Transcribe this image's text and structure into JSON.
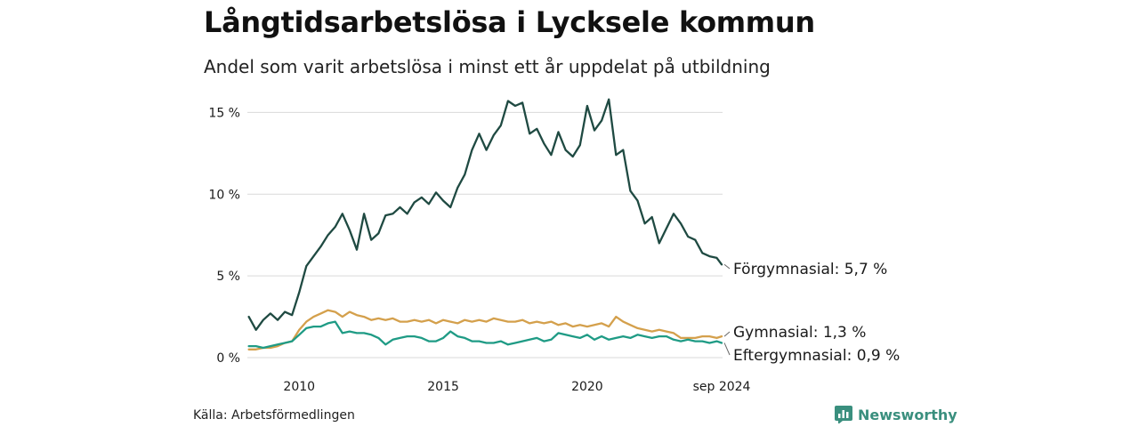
{
  "header": {
    "title": "Långtidsarbetslösa i Lycksele kommun",
    "subtitle": "Andel som varit arbetslösa i minst ett år uppdelat på utbildning"
  },
  "footer": {
    "source": "Källa: Arbetsförmedlingen",
    "brand": "Newsworthy"
  },
  "colors": {
    "forgymnasial": "#1f4a42",
    "gymnasial": "#d4a04c",
    "eftergymnasial": "#1f9b85",
    "grid": "#d9d9d9",
    "brand": "#3a8f7e"
  },
  "chart_data": {
    "type": "line",
    "ylim": [
      0,
      16
    ],
    "yticks": [
      0,
      5,
      10,
      15
    ],
    "ytick_labels": [
      "0 %",
      "5 %",
      "10 %",
      "15 %"
    ],
    "xlim": [
      2008.2,
      2024.7
    ],
    "xticks": [
      2010,
      2015,
      2020,
      2024.67
    ],
    "xtick_labels": [
      "2010",
      "2015",
      "2020",
      "sep 2024"
    ],
    "grid": true,
    "series": [
      {
        "name": "Förgymnasial",
        "end_label": "Förgymnasial: 5,7 %",
        "color": "#1f4a42",
        "points": [
          [
            2008.25,
            2.5
          ],
          [
            2008.5,
            1.7
          ],
          [
            2008.75,
            2.3
          ],
          [
            2009.0,
            2.7
          ],
          [
            2009.25,
            2.3
          ],
          [
            2009.5,
            2.8
          ],
          [
            2009.75,
            2.6
          ],
          [
            2010.0,
            4.0
          ],
          [
            2010.25,
            5.6
          ],
          [
            2010.5,
            6.2
          ],
          [
            2010.75,
            6.8
          ],
          [
            2011.0,
            7.5
          ],
          [
            2011.25,
            8.0
          ],
          [
            2011.5,
            8.8
          ],
          [
            2011.75,
            7.8
          ],
          [
            2012.0,
            6.6
          ],
          [
            2012.25,
            8.8
          ],
          [
            2012.5,
            7.2
          ],
          [
            2012.75,
            7.6
          ],
          [
            2013.0,
            8.7
          ],
          [
            2013.25,
            8.8
          ],
          [
            2013.5,
            9.2
          ],
          [
            2013.75,
            8.8
          ],
          [
            2014.0,
            9.5
          ],
          [
            2014.25,
            9.8
          ],
          [
            2014.5,
            9.4
          ],
          [
            2014.75,
            10.1
          ],
          [
            2015.0,
            9.6
          ],
          [
            2015.25,
            9.2
          ],
          [
            2015.5,
            10.4
          ],
          [
            2015.75,
            11.2
          ],
          [
            2016.0,
            12.7
          ],
          [
            2016.25,
            13.7
          ],
          [
            2016.5,
            12.7
          ],
          [
            2016.75,
            13.6
          ],
          [
            2017.0,
            14.2
          ],
          [
            2017.25,
            15.7
          ],
          [
            2017.5,
            15.4
          ],
          [
            2017.75,
            15.6
          ],
          [
            2018.0,
            13.7
          ],
          [
            2018.25,
            14.0
          ],
          [
            2018.5,
            13.1
          ],
          [
            2018.75,
            12.4
          ],
          [
            2019.0,
            13.8
          ],
          [
            2019.25,
            12.7
          ],
          [
            2019.5,
            12.3
          ],
          [
            2019.75,
            13.0
          ],
          [
            2020.0,
            15.4
          ],
          [
            2020.25,
            13.9
          ],
          [
            2020.5,
            14.5
          ],
          [
            2020.75,
            15.8
          ],
          [
            2021.0,
            12.4
          ],
          [
            2021.25,
            12.7
          ],
          [
            2021.5,
            10.2
          ],
          [
            2021.75,
            9.6
          ],
          [
            2022.0,
            8.2
          ],
          [
            2022.25,
            8.6
          ],
          [
            2022.5,
            7.0
          ],
          [
            2022.75,
            7.9
          ],
          [
            2023.0,
            8.8
          ],
          [
            2023.25,
            8.2
          ],
          [
            2023.5,
            7.4
          ],
          [
            2023.75,
            7.2
          ],
          [
            2024.0,
            6.4
          ],
          [
            2024.25,
            6.2
          ],
          [
            2024.5,
            6.1
          ],
          [
            2024.67,
            5.7
          ]
        ]
      },
      {
        "name": "Gymnasial",
        "end_label": "Gymnasial: 1,3 %",
        "color": "#d4a04c",
        "points": [
          [
            2008.25,
            0.5
          ],
          [
            2008.5,
            0.5
          ],
          [
            2008.75,
            0.6
          ],
          [
            2009.0,
            0.6
          ],
          [
            2009.25,
            0.7
          ],
          [
            2009.5,
            0.9
          ],
          [
            2009.75,
            1.0
          ],
          [
            2010.0,
            1.7
          ],
          [
            2010.25,
            2.2
          ],
          [
            2010.5,
            2.5
          ],
          [
            2010.75,
            2.7
          ],
          [
            2011.0,
            2.9
          ],
          [
            2011.25,
            2.8
          ],
          [
            2011.5,
            2.5
          ],
          [
            2011.75,
            2.8
          ],
          [
            2012.0,
            2.6
          ],
          [
            2012.25,
            2.5
          ],
          [
            2012.5,
            2.3
          ],
          [
            2012.75,
            2.4
          ],
          [
            2013.0,
            2.3
          ],
          [
            2013.25,
            2.4
          ],
          [
            2013.5,
            2.2
          ],
          [
            2013.75,
            2.2
          ],
          [
            2014.0,
            2.3
          ],
          [
            2014.25,
            2.2
          ],
          [
            2014.5,
            2.3
          ],
          [
            2014.75,
            2.1
          ],
          [
            2015.0,
            2.3
          ],
          [
            2015.25,
            2.2
          ],
          [
            2015.5,
            2.1
          ],
          [
            2015.75,
            2.3
          ],
          [
            2016.0,
            2.2
          ],
          [
            2016.25,
            2.3
          ],
          [
            2016.5,
            2.2
          ],
          [
            2016.75,
            2.4
          ],
          [
            2017.0,
            2.3
          ],
          [
            2017.25,
            2.2
          ],
          [
            2017.5,
            2.2
          ],
          [
            2017.75,
            2.3
          ],
          [
            2018.0,
            2.1
          ],
          [
            2018.25,
            2.2
          ],
          [
            2018.5,
            2.1
          ],
          [
            2018.75,
            2.2
          ],
          [
            2019.0,
            2.0
          ],
          [
            2019.25,
            2.1
          ],
          [
            2019.5,
            1.9
          ],
          [
            2019.75,
            2.0
          ],
          [
            2020.0,
            1.9
          ],
          [
            2020.25,
            2.0
          ],
          [
            2020.5,
            2.1
          ],
          [
            2020.75,
            1.9
          ],
          [
            2021.0,
            2.5
          ],
          [
            2021.25,
            2.2
          ],
          [
            2021.5,
            2.0
          ],
          [
            2021.75,
            1.8
          ],
          [
            2022.0,
            1.7
          ],
          [
            2022.25,
            1.6
          ],
          [
            2022.5,
            1.7
          ],
          [
            2022.75,
            1.6
          ],
          [
            2023.0,
            1.5
          ],
          [
            2023.25,
            1.2
          ],
          [
            2023.5,
            1.2
          ],
          [
            2023.75,
            1.2
          ],
          [
            2024.0,
            1.3
          ],
          [
            2024.25,
            1.3
          ],
          [
            2024.5,
            1.2
          ],
          [
            2024.67,
            1.3
          ]
        ]
      },
      {
        "name": "Eftergymnasial",
        "end_label": "Eftergymnasial: 0,9 %",
        "color": "#1f9b85",
        "points": [
          [
            2008.25,
            0.7
          ],
          [
            2008.5,
            0.7
          ],
          [
            2008.75,
            0.6
          ],
          [
            2009.0,
            0.7
          ],
          [
            2009.25,
            0.8
          ],
          [
            2009.5,
            0.9
          ],
          [
            2009.75,
            1.0
          ],
          [
            2010.0,
            1.4
          ],
          [
            2010.25,
            1.8
          ],
          [
            2010.5,
            1.9
          ],
          [
            2010.75,
            1.9
          ],
          [
            2011.0,
            2.1
          ],
          [
            2011.25,
            2.2
          ],
          [
            2011.5,
            1.5
          ],
          [
            2011.75,
            1.6
          ],
          [
            2012.0,
            1.5
          ],
          [
            2012.25,
            1.5
          ],
          [
            2012.5,
            1.4
          ],
          [
            2012.75,
            1.2
          ],
          [
            2013.0,
            0.8
          ],
          [
            2013.25,
            1.1
          ],
          [
            2013.5,
            1.2
          ],
          [
            2013.75,
            1.3
          ],
          [
            2014.0,
            1.3
          ],
          [
            2014.25,
            1.2
          ],
          [
            2014.5,
            1.0
          ],
          [
            2014.75,
            1.0
          ],
          [
            2015.0,
            1.2
          ],
          [
            2015.25,
            1.6
          ],
          [
            2015.5,
            1.3
          ],
          [
            2015.75,
            1.2
          ],
          [
            2016.0,
            1.0
          ],
          [
            2016.25,
            1.0
          ],
          [
            2016.5,
            0.9
          ],
          [
            2016.75,
            0.9
          ],
          [
            2017.0,
            1.0
          ],
          [
            2017.25,
            0.8
          ],
          [
            2017.5,
            0.9
          ],
          [
            2017.75,
            1.0
          ],
          [
            2018.0,
            1.1
          ],
          [
            2018.25,
            1.2
          ],
          [
            2018.5,
            1.0
          ],
          [
            2018.75,
            1.1
          ],
          [
            2019.0,
            1.5
          ],
          [
            2019.25,
            1.4
          ],
          [
            2019.5,
            1.3
          ],
          [
            2019.75,
            1.2
          ],
          [
            2020.0,
            1.4
          ],
          [
            2020.25,
            1.1
          ],
          [
            2020.5,
            1.3
          ],
          [
            2020.75,
            1.1
          ],
          [
            2021.0,
            1.2
          ],
          [
            2021.25,
            1.3
          ],
          [
            2021.5,
            1.2
          ],
          [
            2021.75,
            1.4
          ],
          [
            2022.0,
            1.3
          ],
          [
            2022.25,
            1.2
          ],
          [
            2022.5,
            1.3
          ],
          [
            2022.75,
            1.3
          ],
          [
            2023.0,
            1.1
          ],
          [
            2023.25,
            1.0
          ],
          [
            2023.5,
            1.1
          ],
          [
            2023.75,
            1.0
          ],
          [
            2024.0,
            1.0
          ],
          [
            2024.25,
            0.9
          ],
          [
            2024.5,
            1.0
          ],
          [
            2024.67,
            0.9
          ]
        ]
      }
    ]
  }
}
